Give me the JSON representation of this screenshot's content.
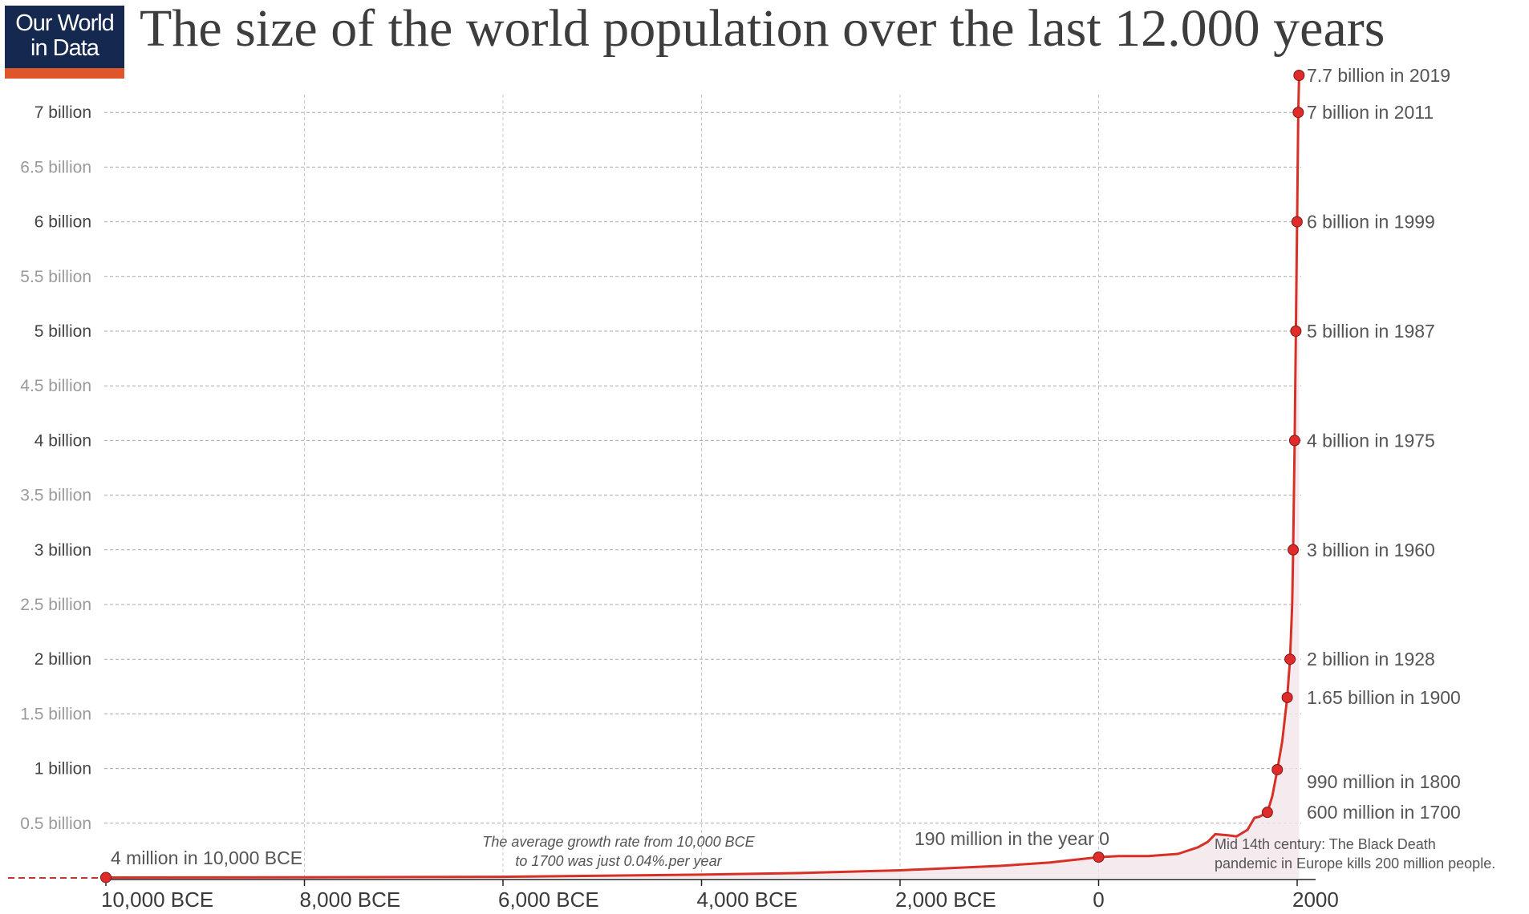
{
  "logo": {
    "line1": "Our World",
    "line2": "in Data",
    "colors": {
      "navy": "#15284f",
      "accent": "#e0562b"
    }
  },
  "title": "The size of the world population over the last 12.000 years",
  "chart_data": {
    "type": "line",
    "title": "The size of the world population over the last 12.000 years",
    "xlabel": "",
    "ylabel": "",
    "xlim": [
      -10000,
      2019
    ],
    "ylim": [
      0,
      7.7
    ],
    "grid": true,
    "line_color": "#d73027",
    "fill_color": "#f3e6ea",
    "y_ticks": [
      {
        "value": 0.5,
        "label": "0.5 billion"
      },
      {
        "value": 1,
        "label": "1 billion"
      },
      {
        "value": 1.5,
        "label": "1.5 billion"
      },
      {
        "value": 2,
        "label": "2 billion"
      },
      {
        "value": 2.5,
        "label": "2.5 billion"
      },
      {
        "value": 3,
        "label": "3 billion"
      },
      {
        "value": 3.5,
        "label": "3.5  billion"
      },
      {
        "value": 4,
        "label": "4 billion"
      },
      {
        "value": 4.5,
        "label": "4.5 billion"
      },
      {
        "value": 5,
        "label": "5 billion"
      },
      {
        "value": 5.5,
        "label": "5.5 billion"
      },
      {
        "value": 6,
        "label": "6 billion"
      },
      {
        "value": 6.5,
        "label": "6.5 billion"
      },
      {
        "value": 7,
        "label": "7 billion"
      }
    ],
    "x_ticks": [
      {
        "value": -10000,
        "label": "10,000 BCE"
      },
      {
        "value": -8000,
        "label": "8,000 BCE"
      },
      {
        "value": -6000,
        "label": "6,000 BCE"
      },
      {
        "value": -4000,
        "label": "4,000 BCE"
      },
      {
        "value": -2000,
        "label": "2,000 BCE"
      },
      {
        "value": 0,
        "label": "0"
      },
      {
        "value": 2000,
        "label": "2000"
      }
    ],
    "series": [
      {
        "x": [
          -10000,
          -8000,
          -6000,
          -5000,
          -4000,
          -3000,
          -2000,
          -1000,
          -500,
          0,
          200,
          500,
          800,
          1000,
          1100,
          1175,
          1300,
          1390,
          1500,
          1570,
          1620,
          1700,
          1750,
          1800,
          1850,
          1900,
          1928,
          1950,
          1960,
          1975,
          1987,
          1999,
          2011,
          2019
        ],
        "values": [
          0.004,
          0.005,
          0.01,
          0.02,
          0.03,
          0.045,
          0.07,
          0.11,
          0.14,
          0.19,
          0.2,
          0.2,
          0.22,
          0.28,
          0.33,
          0.4,
          0.39,
          0.38,
          0.44,
          0.55,
          0.56,
          0.6,
          0.75,
          0.99,
          1.25,
          1.65,
          2,
          2.5,
          3,
          4,
          5,
          6,
          7,
          7.7
        ]
      }
    ],
    "labeled_points": [
      {
        "x": -10000,
        "value": 0.004,
        "label": "4 million in 10,000 BCE"
      },
      {
        "x": 0,
        "value": 0.19,
        "label": "190 million in the year 0"
      },
      {
        "x": 1700,
        "value": 0.6,
        "label": "600 million in 1700"
      },
      {
        "x": 1800,
        "value": 0.99,
        "label": "990 million in 1800"
      },
      {
        "x": 1900,
        "value": 1.65,
        "label": "1.65 billion in 1900"
      },
      {
        "x": 1928,
        "value": 2,
        "label": "2 billion in 1928"
      },
      {
        "x": 1960,
        "value": 3,
        "label": "3 billion in 1960"
      },
      {
        "x": 1975,
        "value": 4,
        "label": "4 billion in 1975"
      },
      {
        "x": 1987,
        "value": 5,
        "label": "5 billion in 1987"
      },
      {
        "x": 1999,
        "value": 6,
        "label": "6 billion in 1999"
      },
      {
        "x": 2011,
        "value": 7,
        "label": "7 billion in 2011"
      },
      {
        "x": 2019,
        "value": 7.7,
        "label": "7.7 billion in 2019"
      }
    ],
    "annotations": {
      "growth_rate": [
        "The average growth rate from 10,000 BCE",
        "to 1700 was just  0.04%.per year"
      ],
      "black_death": [
        "Mid 14th century: The Black Death",
        "pandemic in Europe kills 200 million people."
      ]
    }
  }
}
